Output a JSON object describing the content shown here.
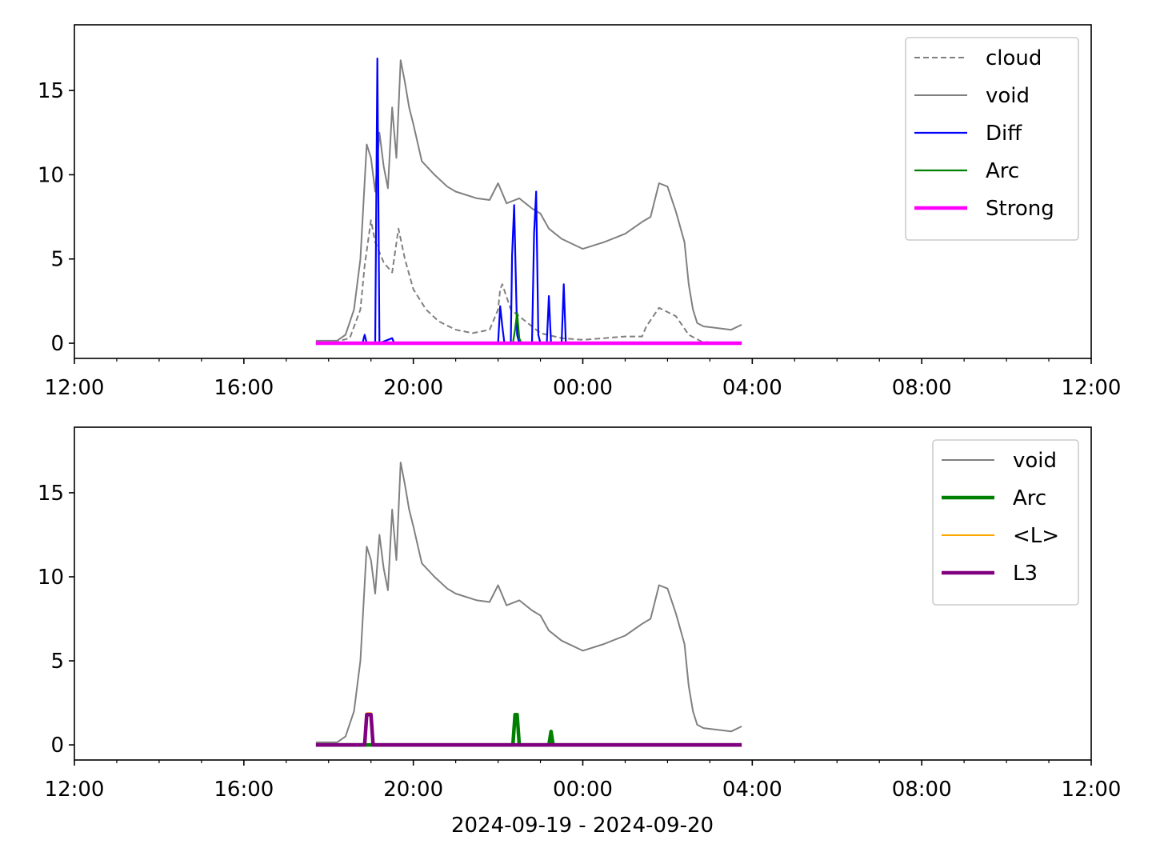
{
  "xlabel": "2024-09-19 - 2024-09-20",
  "chart_data": [
    {
      "type": "line",
      "x_ticks": [
        "12:00",
        "16:00",
        "20:00",
        "00:00",
        "04:00",
        "08:00",
        "12:00"
      ],
      "x_range_hours": [
        12,
        36
      ],
      "y_ticks": [
        "0",
        "5",
        "10",
        "15"
      ],
      "ylim": [
        -0.9,
        18.9
      ],
      "legend": {
        "placement": "top-right",
        "entries": [
          "cloud",
          "void",
          "Diff",
          "Arc",
          "Strong"
        ]
      },
      "series": [
        {
          "name": "cloud",
          "color": "#808080",
          "dashed": true,
          "points": [
            [
              17.7,
              0.1
            ],
            [
              18.2,
              0.1
            ],
            [
              18.5,
              0.3
            ],
            [
              18.75,
              2.0
            ],
            [
              18.85,
              4.6
            ],
            [
              19.0,
              7.3
            ],
            [
              19.1,
              6.0
            ],
            [
              19.3,
              4.8
            ],
            [
              19.5,
              4.2
            ],
            [
              19.65,
              6.8
            ],
            [
              19.8,
              5.0
            ],
            [
              20.0,
              3.2
            ],
            [
              20.3,
              2.0
            ],
            [
              20.6,
              1.3
            ],
            [
              21.0,
              0.8
            ],
            [
              21.4,
              0.6
            ],
            [
              21.8,
              0.8
            ],
            [
              22.0,
              2.0
            ],
            [
              22.05,
              3.2
            ],
            [
              22.1,
              3.5
            ],
            [
              22.3,
              2.0
            ],
            [
              22.6,
              1.4
            ],
            [
              23.0,
              0.6
            ],
            [
              23.5,
              0.3
            ],
            [
              24.0,
              0.2
            ],
            [
              24.5,
              0.3
            ],
            [
              25.0,
              0.4
            ],
            [
              25.4,
              0.4
            ],
            [
              25.5,
              1.0
            ],
            [
              25.8,
              2.1
            ],
            [
              26.2,
              1.6
            ],
            [
              26.5,
              0.5
            ],
            [
              26.8,
              0.1
            ],
            [
              27.2,
              0.0
            ],
            [
              27.75,
              0.0
            ]
          ]
        },
        {
          "name": "void",
          "color": "#808080",
          "points": [
            [
              17.7,
              0.15
            ],
            [
              18.2,
              0.15
            ],
            [
              18.4,
              0.5
            ],
            [
              18.6,
              2.0
            ],
            [
              18.75,
              5.0
            ],
            [
              18.9,
              11.8
            ],
            [
              19.0,
              11.0
            ],
            [
              19.1,
              9.0
            ],
            [
              19.2,
              12.5
            ],
            [
              19.3,
              10.5
            ],
            [
              19.4,
              9.2
            ],
            [
              19.5,
              14.0
            ],
            [
              19.6,
              11.0
            ],
            [
              19.7,
              16.8
            ],
            [
              19.8,
              15.5
            ],
            [
              19.9,
              14.0
            ],
            [
              20.0,
              13.0
            ],
            [
              20.2,
              10.8
            ],
            [
              20.5,
              10.0
            ],
            [
              20.8,
              9.3
            ],
            [
              21.0,
              9.0
            ],
            [
              21.5,
              8.6
            ],
            [
              21.8,
              8.5
            ],
            [
              22.0,
              9.5
            ],
            [
              22.2,
              8.3
            ],
            [
              22.5,
              8.6
            ],
            [
              22.8,
              8.0
            ],
            [
              23.0,
              7.7
            ],
            [
              23.2,
              6.8
            ],
            [
              23.5,
              6.2
            ],
            [
              24.0,
              5.6
            ],
            [
              24.5,
              6.0
            ],
            [
              25.0,
              6.5
            ],
            [
              25.4,
              7.2
            ],
            [
              25.6,
              7.5
            ],
            [
              25.8,
              9.5
            ],
            [
              26.0,
              9.3
            ],
            [
              26.2,
              7.8
            ],
            [
              26.4,
              6.0
            ],
            [
              26.5,
              3.5
            ],
            [
              26.6,
              2.0
            ],
            [
              26.7,
              1.2
            ],
            [
              26.85,
              1.0
            ],
            [
              27.5,
              0.8
            ],
            [
              27.75,
              1.1
            ]
          ]
        },
        {
          "name": "Diff",
          "color": "#0000ff",
          "points": [
            [
              17.7,
              0.0
            ],
            [
              18.8,
              0.0
            ],
            [
              18.85,
              0.5
            ],
            [
              18.9,
              0.0
            ],
            [
              19.1,
              0.0
            ],
            [
              19.15,
              16.9
            ],
            [
              19.2,
              0.0
            ],
            [
              19.5,
              0.3
            ],
            [
              19.55,
              0.0
            ],
            [
              22.0,
              0.0
            ],
            [
              22.05,
              2.2
            ],
            [
              22.1,
              1.0
            ],
            [
              22.15,
              0.0
            ],
            [
              22.3,
              0.0
            ],
            [
              22.33,
              5.2
            ],
            [
              22.38,
              8.2
            ],
            [
              22.45,
              0.5
            ],
            [
              22.5,
              0.0
            ],
            [
              22.8,
              0.0
            ],
            [
              22.85,
              6.5
            ],
            [
              22.9,
              9.0
            ],
            [
              22.95,
              0.5
            ],
            [
              23.0,
              0.0
            ],
            [
              23.15,
              0.0
            ],
            [
              23.2,
              2.8
            ],
            [
              23.25,
              0.0
            ],
            [
              23.5,
              0.0
            ],
            [
              23.55,
              3.5
            ],
            [
              23.6,
              0.0
            ],
            [
              27.75,
              0.0
            ]
          ]
        },
        {
          "name": "Arc",
          "color": "#008000",
          "points": [
            [
              17.7,
              0.0
            ],
            [
              22.35,
              0.0
            ],
            [
              22.4,
              0.8
            ],
            [
              22.45,
              1.8
            ],
            [
              22.5,
              0.3
            ],
            [
              22.55,
              0.0
            ],
            [
              27.75,
              0.0
            ]
          ]
        },
        {
          "name": "Strong",
          "color": "#ff00ff",
          "points": [
            [
              17.7,
              0.0
            ],
            [
              27.75,
              0.0
            ]
          ]
        }
      ]
    },
    {
      "type": "line",
      "x_ticks": [
        "12:00",
        "16:00",
        "20:00",
        "00:00",
        "04:00",
        "08:00",
        "12:00"
      ],
      "x_range_hours": [
        12,
        36
      ],
      "y_ticks": [
        "0",
        "5",
        "10",
        "15"
      ],
      "ylim": [
        -0.9,
        18.9
      ],
      "legend": {
        "placement": "top-right",
        "entries": [
          "void",
          "Arc",
          "<L>",
          "L3"
        ]
      },
      "series": [
        {
          "name": "void",
          "color": "#808080",
          "points": [
            [
              17.7,
              0.15
            ],
            [
              18.2,
              0.15
            ],
            [
              18.4,
              0.5
            ],
            [
              18.6,
              2.0
            ],
            [
              18.75,
              5.0
            ],
            [
              18.9,
              11.8
            ],
            [
              19.0,
              11.0
            ],
            [
              19.1,
              9.0
            ],
            [
              19.2,
              12.5
            ],
            [
              19.3,
              10.5
            ],
            [
              19.4,
              9.2
            ],
            [
              19.5,
              14.0
            ],
            [
              19.6,
              11.0
            ],
            [
              19.7,
              16.8
            ],
            [
              19.8,
              15.5
            ],
            [
              19.9,
              14.0
            ],
            [
              20.0,
              13.0
            ],
            [
              20.2,
              10.8
            ],
            [
              20.5,
              10.0
            ],
            [
              20.8,
              9.3
            ],
            [
              21.0,
              9.0
            ],
            [
              21.5,
              8.6
            ],
            [
              21.8,
              8.5
            ],
            [
              22.0,
              9.5
            ],
            [
              22.2,
              8.3
            ],
            [
              22.5,
              8.6
            ],
            [
              22.8,
              8.0
            ],
            [
              23.0,
              7.7
            ],
            [
              23.2,
              6.8
            ],
            [
              23.5,
              6.2
            ],
            [
              24.0,
              5.6
            ],
            [
              24.5,
              6.0
            ],
            [
              25.0,
              6.5
            ],
            [
              25.4,
              7.2
            ],
            [
              25.6,
              7.5
            ],
            [
              25.8,
              9.5
            ],
            [
              26.0,
              9.3
            ],
            [
              26.2,
              7.8
            ],
            [
              26.4,
              6.0
            ],
            [
              26.5,
              3.5
            ],
            [
              26.6,
              2.0
            ],
            [
              26.7,
              1.2
            ],
            [
              26.85,
              1.0
            ],
            [
              27.5,
              0.8
            ],
            [
              27.75,
              1.1
            ]
          ]
        },
        {
          "name": "Arc",
          "color": "#008000",
          "points": [
            [
              17.7,
              0.0
            ],
            [
              22.35,
              0.0
            ],
            [
              22.4,
              1.8
            ],
            [
              22.45,
              1.8
            ],
            [
              22.5,
              0.0
            ],
            [
              23.2,
              0.0
            ],
            [
              23.25,
              0.8
            ],
            [
              23.3,
              0.0
            ],
            [
              27.75,
              0.0
            ]
          ]
        },
        {
          "name": "<L>",
          "color": "#ffa500",
          "points": [
            [
              17.7,
              0.0
            ],
            [
              18.85,
              0.0
            ],
            [
              18.9,
              1.9
            ],
            [
              19.0,
              1.9
            ],
            [
              19.05,
              0.0
            ],
            [
              27.75,
              0.0
            ]
          ]
        },
        {
          "name": "L3",
          "color": "#800080",
          "points": [
            [
              17.7,
              0.0
            ],
            [
              18.85,
              0.0
            ],
            [
              18.9,
              1.8
            ],
            [
              19.0,
              1.8
            ],
            [
              19.05,
              0.0
            ],
            [
              27.75,
              0.0
            ]
          ]
        }
      ]
    }
  ]
}
